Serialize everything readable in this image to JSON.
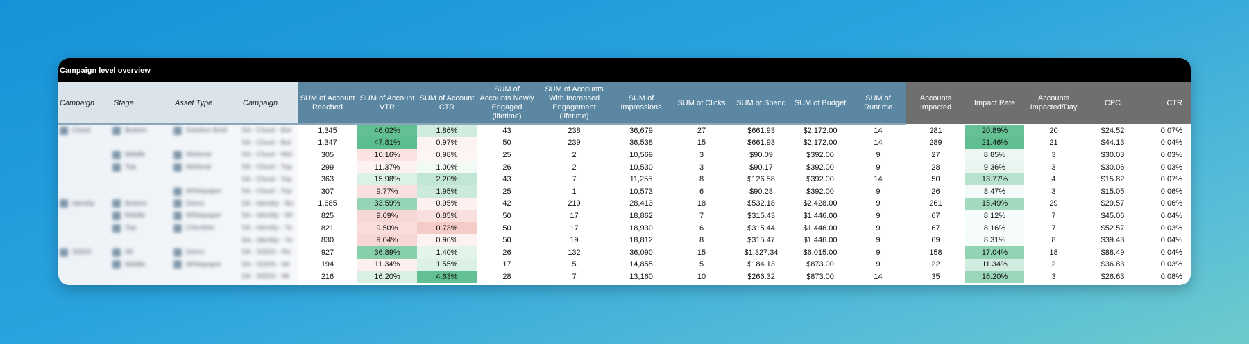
{
  "title": "Campaign level overview",
  "headers": {
    "left": [
      "Campaign",
      "Stage",
      "Asset Type",
      "Campaign"
    ],
    "blue": [
      "SUM of Account Reached",
      "SUM of Account VTR",
      "SUM of Account CTR",
      "SUM of Accounts Newly Engaged (lifetime)",
      "SUM of Accounts With Increased Engagement (lifetime)",
      "SUM of Impressions",
      "SUM of Clicks",
      "SUM of Spend",
      "SUM of Budget",
      "SUM of Runtime"
    ],
    "gray": [
      "Accounts Impacted",
      "Impact Rate",
      "Accounts Impacted/Day",
      "CPC",
      "CTR"
    ]
  },
  "colors": {
    "title_bg": "#000000",
    "header_blue": "#5b87a2",
    "header_gray": "#6f6f6f",
    "heat_green": "#57bb8a",
    "heat_red": "#e67c73"
  },
  "rows": [
    {
      "left": [
        "Cloud",
        "Bottom",
        "Solution Brief",
        "SA - Cloud - Bot"
      ],
      "reached": "1,345",
      "vtr": "46.02%",
      "ctr": "1.86%",
      "newly": "43",
      "increased": "238",
      "impr": "36,679",
      "clicks": "27",
      "spend": "$661.93",
      "budget": "$2,172.00",
      "runtime": "14",
      "impacted": "281",
      "rate": "20.89%",
      "perday": "20",
      "cpc": "$24.52",
      "ctr2": "0.07%"
    },
    {
      "left": [
        "",
        "",
        "",
        "SA - Cloud - Bot"
      ],
      "reached": "1,347",
      "vtr": "47.81%",
      "ctr": "0.97%",
      "newly": "50",
      "increased": "239",
      "impr": "36,538",
      "clicks": "15",
      "spend": "$661.93",
      "budget": "$2,172.00",
      "runtime": "14",
      "impacted": "289",
      "rate": "21.46%",
      "perday": "21",
      "cpc": "$44.13",
      "ctr2": "0.04%"
    },
    {
      "left": [
        "",
        "Middle",
        "Webinar",
        "SA - Cloud - Mid"
      ],
      "reached": "305",
      "vtr": "10.16%",
      "ctr": "0.98%",
      "newly": "25",
      "increased": "2",
      "impr": "10,569",
      "clicks": "3",
      "spend": "$90.09",
      "budget": "$392.00",
      "runtime": "9",
      "impacted": "27",
      "rate": "8.85%",
      "perday": "3",
      "cpc": "$30.03",
      "ctr2": "0.03%"
    },
    {
      "left": [
        "",
        "Top",
        "Webinar",
        "SA - Cloud - Top"
      ],
      "reached": "299",
      "vtr": "11.37%",
      "ctr": "1.00%",
      "newly": "26",
      "increased": "2",
      "impr": "10,530",
      "clicks": "3",
      "spend": "$90.17",
      "budget": "$392.00",
      "runtime": "9",
      "impacted": "28",
      "rate": "9.36%",
      "perday": "3",
      "cpc": "$30.06",
      "ctr2": "0.03%"
    },
    {
      "left": [
        "",
        "",
        "",
        "SA - Cloud - Top"
      ],
      "reached": "363",
      "vtr": "15.98%",
      "ctr": "2.20%",
      "newly": "43",
      "increased": "7",
      "impr": "11,255",
      "clicks": "8",
      "spend": "$126.58",
      "budget": "$392.00",
      "runtime": "14",
      "impacted": "50",
      "rate": "13.77%",
      "perday": "4",
      "cpc": "$15.82",
      "ctr2": "0.07%"
    },
    {
      "left": [
        "",
        "",
        "Whitepaper",
        "SA - Cloud - Top"
      ],
      "reached": "307",
      "vtr": "9.77%",
      "ctr": "1.95%",
      "newly": "25",
      "increased": "1",
      "impr": "10,573",
      "clicks": "6",
      "spend": "$90.28",
      "budget": "$392.00",
      "runtime": "9",
      "impacted": "26",
      "rate": "8.47%",
      "perday": "3",
      "cpc": "$15.05",
      "ctr2": "0.06%"
    },
    {
      "left": [
        "Identity",
        "Bottom",
        "Demo",
        "SA - Identity - Bo"
      ],
      "reached": "1,685",
      "vtr": "33.59%",
      "ctr": "0.95%",
      "newly": "42",
      "increased": "219",
      "impr": "28,413",
      "clicks": "18",
      "spend": "$532.18",
      "budget": "$2,428.00",
      "runtime": "9",
      "impacted": "261",
      "rate": "15.49%",
      "perday": "29",
      "cpc": "$29.57",
      "ctr2": "0.06%"
    },
    {
      "left": [
        "",
        "Middle",
        "Whitepaper",
        "SA - Identity - Mi"
      ],
      "reached": "825",
      "vtr": "9.09%",
      "ctr": "0.85%",
      "newly": "50",
      "increased": "17",
      "impr": "18,862",
      "clicks": "7",
      "spend": "$315.43",
      "budget": "$1,446.00",
      "runtime": "9",
      "impacted": "67",
      "rate": "8.12%",
      "perday": "7",
      "cpc": "$45.06",
      "ctr2": "0.04%"
    },
    {
      "left": [
        "",
        "Top",
        "Checklist",
        "SA - Identity - To"
      ],
      "reached": "821",
      "vtr": "9.50%",
      "ctr": "0.73%",
      "newly": "50",
      "increased": "17",
      "impr": "18,930",
      "clicks": "6",
      "spend": "$315.44",
      "budget": "$1,446.00",
      "runtime": "9",
      "impacted": "67",
      "rate": "8.16%",
      "perday": "7",
      "cpc": "$52.57",
      "ctr2": "0.03%"
    },
    {
      "left": [
        "",
        "",
        "",
        "SA - Identity - To"
      ],
      "reached": "830",
      "vtr": "9.04%",
      "ctr": "0.96%",
      "newly": "50",
      "increased": "19",
      "impr": "18,812",
      "clicks": "8",
      "spend": "$315.47",
      "budget": "$1,446.00",
      "runtime": "9",
      "impacted": "69",
      "rate": "8.31%",
      "perday": "8",
      "cpc": "$39.43",
      "ctr2": "0.04%"
    },
    {
      "left": [
        "SDDS",
        "All",
        "Demo",
        "SA - SDDS - Re"
      ],
      "reached": "927",
      "vtr": "36.89%",
      "ctr": "1.40%",
      "newly": "26",
      "increased": "132",
      "impr": "36,090",
      "clicks": "15",
      "spend": "$1,327.34",
      "budget": "$6,015.00",
      "runtime": "9",
      "impacted": "158",
      "rate": "17.04%",
      "perday": "18",
      "cpc": "$88.49",
      "ctr2": "0.04%"
    },
    {
      "left": [
        "",
        "Middle",
        "Whitepaper",
        "SA - SDDS - Mi"
      ],
      "reached": "194",
      "vtr": "11.34%",
      "ctr": "1.55%",
      "newly": "17",
      "increased": "5",
      "impr": "14,855",
      "clicks": "5",
      "spend": "$184.13",
      "budget": "$873.00",
      "runtime": "9",
      "impacted": "22",
      "rate": "11.34%",
      "perday": "2",
      "cpc": "$36.83",
      "ctr2": "0.03%"
    },
    {
      "left": [
        "",
        "",
        "",
        "SA - SDDS - Mi"
      ],
      "reached": "216",
      "vtr": "16.20%",
      "ctr": "4.63%",
      "newly": "28",
      "increased": "7",
      "impr": "13,160",
      "clicks": "10",
      "spend": "$266.32",
      "budget": "$873.00",
      "runtime": "14",
      "impacted": "35",
      "rate": "16.20%",
      "perday": "3",
      "cpc": "$26.63",
      "ctr2": "0.08%"
    }
  ]
}
